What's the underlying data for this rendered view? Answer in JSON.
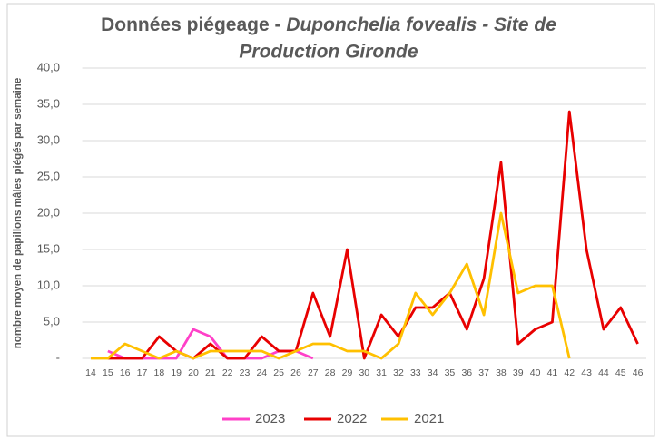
{
  "chart_data": {
    "type": "line",
    "title": [
      "Données piégeage - ",
      "Duponchelia fovealis - Site de",
      "Production Gironde"
    ],
    "y_label": "nombre moyen de papillons mâles piégés par semaine",
    "categories": [
      "14",
      "15",
      "16",
      "17",
      "18",
      "19",
      "20",
      "21",
      "22",
      "23",
      "24",
      "25",
      "26",
      "27",
      "28",
      "29",
      "30",
      "31",
      "32",
      "33",
      "34",
      "35",
      "36",
      "37",
      "38",
      "39",
      "40",
      "41",
      "42",
      "43",
      "44",
      "45",
      "46"
    ],
    "series": [
      {
        "name": "2023",
        "color": "#ff40c8",
        "values": [
          null,
          1,
          0,
          0,
          0,
          0,
          4,
          3,
          0,
          0,
          0,
          1,
          1,
          0,
          null,
          null,
          null,
          null,
          null,
          null,
          null,
          null,
          null,
          null,
          null,
          null,
          null,
          null,
          null,
          null,
          null,
          null,
          null
        ]
      },
      {
        "name": "2022",
        "color": "#e80000",
        "values": [
          null,
          0,
          0,
          0,
          3,
          1,
          0,
          2,
          0,
          0,
          3,
          1,
          1,
          9,
          3,
          15,
          0,
          6,
          3,
          7,
          7,
          9,
          4,
          11,
          27,
          2,
          4,
          5,
          34,
          15,
          4,
          7,
          2
        ]
      },
      {
        "name": "2021",
        "color": "#ffc000",
        "values": [
          0,
          0,
          2,
          1,
          0,
          1,
          0,
          1,
          1,
          1,
          1,
          0,
          1,
          2,
          2,
          1,
          1,
          0,
          2,
          9,
          6,
          9,
          13,
          6,
          20,
          9,
          10,
          10,
          0,
          null,
          null,
          null,
          null
        ]
      }
    ],
    "ylim": [
      0,
      40
    ],
    "yticks": [
      {
        "value": 0,
        "label": "-"
      },
      {
        "value": 5,
        "label": "5,0"
      },
      {
        "value": 10,
        "label": "10,0"
      },
      {
        "value": 15,
        "label": "15,0"
      },
      {
        "value": 20,
        "label": "20,0"
      },
      {
        "value": 25,
        "label": "25,0"
      },
      {
        "value": 30,
        "label": "30,0"
      },
      {
        "value": 35,
        "label": "35,0"
      },
      {
        "value": 40,
        "label": "40,0"
      }
    ],
    "grid": true,
    "legend": "bottom"
  }
}
